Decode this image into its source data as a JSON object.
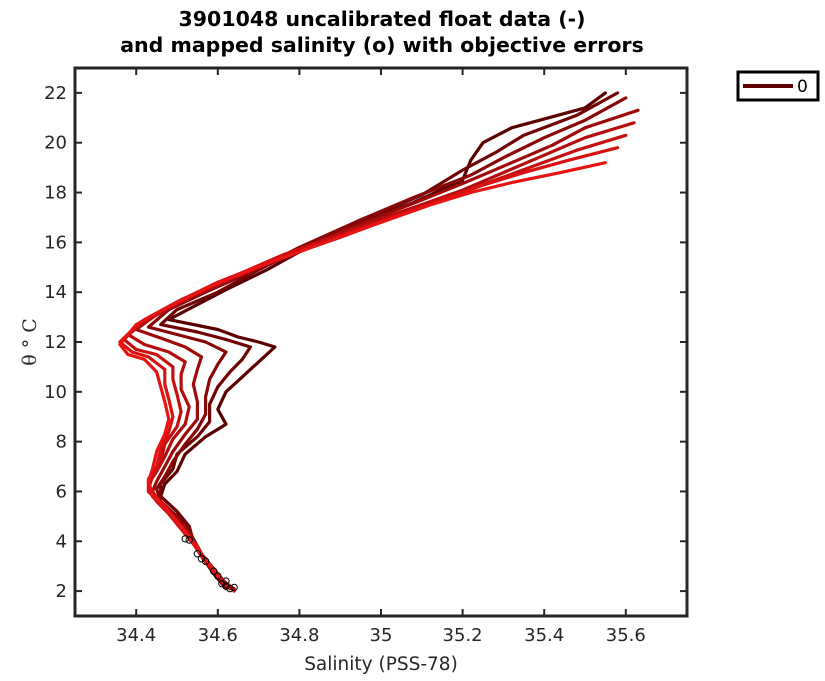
{
  "chart_data": {
    "type": "line",
    "title_lines": [
      "3901048 uncalibrated float data (-)",
      "and mapped salinity (o) with objective errors"
    ],
    "xlabel": "Salinity (PSS-78)",
    "ylabel": "θ ° C",
    "xlim": [
      34.25,
      35.75
    ],
    "ylim": [
      1,
      23
    ],
    "xticks": [
      34.4,
      34.6,
      34.8,
      35,
      35.2,
      35.4,
      35.6
    ],
    "xtick_labels": [
      "34.4",
      "34.6",
      "34.8",
      "35",
      "35.2",
      "35.4",
      "35.6"
    ],
    "yticks": [
      2,
      4,
      6,
      8,
      10,
      12,
      14,
      16,
      18,
      20,
      22
    ],
    "ytick_labels": [
      "2",
      "4",
      "6",
      "8",
      "10",
      "12",
      "14",
      "16",
      "18",
      "20",
      "22"
    ],
    "grid": false,
    "legend": {
      "position": "outside-top-right",
      "entries": [
        "0"
      ]
    },
    "colors": {
      "start": "#5a0000",
      "end": "#e81010",
      "markers": "#000000"
    },
    "series": [
      {
        "color": "#5a0000",
        "points": [
          [
            35.55,
            22.0
          ],
          [
            35.5,
            21.4
          ],
          [
            35.32,
            20.6
          ],
          [
            35.25,
            20.0
          ],
          [
            35.22,
            19.3
          ],
          [
            35.2,
            18.5
          ],
          [
            35.08,
            17.6
          ],
          [
            34.95,
            16.8
          ],
          [
            34.82,
            15.8
          ],
          [
            34.72,
            14.9
          ],
          [
            34.62,
            14.1
          ],
          [
            34.55,
            13.5
          ],
          [
            34.48,
            12.9
          ],
          [
            34.6,
            12.5
          ],
          [
            34.65,
            12.2
          ],
          [
            34.7,
            12.0
          ],
          [
            34.74,
            11.8
          ],
          [
            34.7,
            11.2
          ],
          [
            34.66,
            10.6
          ],
          [
            34.62,
            10.0
          ],
          [
            34.6,
            9.3
          ],
          [
            34.62,
            8.7
          ],
          [
            34.57,
            8.2
          ],
          [
            34.52,
            7.5
          ],
          [
            34.5,
            6.8
          ],
          [
            34.47,
            6.3
          ],
          [
            34.46,
            5.8
          ],
          [
            34.5,
            5.2
          ],
          [
            34.52,
            4.6
          ],
          [
            34.54,
            4.0
          ],
          [
            34.56,
            3.4
          ],
          [
            34.59,
            2.8
          ],
          [
            34.62,
            2.2
          ]
        ]
      },
      {
        "color": "#700404",
        "points": [
          [
            35.58,
            22.0
          ],
          [
            35.48,
            21.1
          ],
          [
            35.35,
            20.3
          ],
          [
            35.28,
            19.6
          ],
          [
            35.2,
            18.9
          ],
          [
            35.1,
            17.9
          ],
          [
            34.97,
            17.0
          ],
          [
            34.82,
            15.9
          ],
          [
            34.7,
            14.9
          ],
          [
            34.6,
            14.0
          ],
          [
            34.5,
            13.3
          ],
          [
            34.46,
            12.7
          ],
          [
            34.55,
            12.4
          ],
          [
            34.62,
            12.1
          ],
          [
            34.68,
            11.8
          ],
          [
            34.66,
            11.3
          ],
          [
            34.63,
            10.8
          ],
          [
            34.6,
            10.2
          ],
          [
            34.58,
            9.5
          ],
          [
            34.58,
            8.8
          ],
          [
            34.55,
            8.2
          ],
          [
            34.5,
            7.5
          ],
          [
            34.49,
            6.9
          ],
          [
            34.46,
            6.3
          ],
          [
            34.46,
            5.8
          ],
          [
            34.5,
            5.2
          ],
          [
            34.53,
            4.6
          ],
          [
            34.54,
            4.0
          ],
          [
            34.56,
            3.4
          ],
          [
            34.59,
            2.7
          ],
          [
            34.62,
            2.1
          ]
        ]
      },
      {
        "color": "#880707",
        "points": [
          [
            35.6,
            21.8
          ],
          [
            35.5,
            20.9
          ],
          [
            35.4,
            20.2
          ],
          [
            35.3,
            19.4
          ],
          [
            35.22,
            18.7
          ],
          [
            35.08,
            17.8
          ],
          [
            34.95,
            16.9
          ],
          [
            34.8,
            15.8
          ],
          [
            34.68,
            14.8
          ],
          [
            34.57,
            14.0
          ],
          [
            34.48,
            13.3
          ],
          [
            34.43,
            12.6
          ],
          [
            34.5,
            12.3
          ],
          [
            34.57,
            12.0
          ],
          [
            34.62,
            11.6
          ],
          [
            34.6,
            11.1
          ],
          [
            34.58,
            10.5
          ],
          [
            34.57,
            9.8
          ],
          [
            34.57,
            9.1
          ],
          [
            34.55,
            8.5
          ],
          [
            34.52,
            7.9
          ],
          [
            34.49,
            7.2
          ],
          [
            34.47,
            6.6
          ],
          [
            34.45,
            6.1
          ],
          [
            34.46,
            5.6
          ],
          [
            34.5,
            5.0
          ],
          [
            34.53,
            4.4
          ],
          [
            34.55,
            3.8
          ],
          [
            34.57,
            3.2
          ],
          [
            34.6,
            2.6
          ],
          [
            34.63,
            2.1
          ]
        ]
      },
      {
        "color": "#9e0a0a",
        "points": [
          [
            35.63,
            21.3
          ],
          [
            35.5,
            20.6
          ],
          [
            35.42,
            19.9
          ],
          [
            35.32,
            19.2
          ],
          [
            35.22,
            18.5
          ],
          [
            35.1,
            17.7
          ],
          [
            34.96,
            16.8
          ],
          [
            34.8,
            15.7
          ],
          [
            34.66,
            14.7
          ],
          [
            34.55,
            13.9
          ],
          [
            34.45,
            13.1
          ],
          [
            34.4,
            12.5
          ],
          [
            34.47,
            12.1
          ],
          [
            34.52,
            11.8
          ],
          [
            34.56,
            11.4
          ],
          [
            34.55,
            10.9
          ],
          [
            34.54,
            10.3
          ],
          [
            34.55,
            9.6
          ],
          [
            34.55,
            8.9
          ],
          [
            34.52,
            8.3
          ],
          [
            34.49,
            7.6
          ],
          [
            34.47,
            7.0
          ],
          [
            34.45,
            6.4
          ],
          [
            34.44,
            6.0
          ],
          [
            34.46,
            5.5
          ],
          [
            34.5,
            4.9
          ],
          [
            34.53,
            4.3
          ],
          [
            34.55,
            3.7
          ],
          [
            34.58,
            3.1
          ],
          [
            34.61,
            2.5
          ],
          [
            34.63,
            2.1
          ]
        ]
      },
      {
        "color": "#b40d0d",
        "points": [
          [
            35.62,
            20.8
          ],
          [
            35.5,
            20.2
          ],
          [
            35.4,
            19.5
          ],
          [
            35.3,
            18.8
          ],
          [
            35.2,
            18.1
          ],
          [
            35.08,
            17.4
          ],
          [
            34.94,
            16.6
          ],
          [
            34.78,
            15.6
          ],
          [
            34.64,
            14.6
          ],
          [
            34.53,
            13.8
          ],
          [
            34.44,
            13.0
          ],
          [
            34.38,
            12.3
          ],
          [
            34.42,
            11.9
          ],
          [
            34.48,
            11.6
          ],
          [
            34.52,
            11.2
          ],
          [
            34.51,
            10.7
          ],
          [
            34.51,
            10.1
          ],
          [
            34.53,
            9.4
          ],
          [
            34.52,
            8.7
          ],
          [
            34.49,
            8.1
          ],
          [
            34.47,
            7.4
          ],
          [
            34.45,
            6.8
          ],
          [
            34.43,
            6.3
          ],
          [
            34.44,
            5.8
          ],
          [
            34.47,
            5.3
          ],
          [
            34.5,
            4.7
          ],
          [
            34.53,
            4.1
          ],
          [
            34.56,
            3.5
          ],
          [
            34.58,
            3.0
          ],
          [
            34.61,
            2.4
          ],
          [
            34.63,
            2.1
          ]
        ]
      },
      {
        "color": "#c60f0f",
        "points": [
          [
            35.6,
            20.3
          ],
          [
            35.48,
            19.7
          ],
          [
            35.38,
            19.1
          ],
          [
            35.28,
            18.5
          ],
          [
            35.18,
            17.9
          ],
          [
            35.06,
            17.2
          ],
          [
            34.92,
            16.4
          ],
          [
            34.76,
            15.5
          ],
          [
            34.62,
            14.5
          ],
          [
            34.51,
            13.7
          ],
          [
            34.42,
            12.9
          ],
          [
            34.37,
            12.1
          ],
          [
            34.4,
            11.7
          ],
          [
            34.45,
            11.5
          ],
          [
            34.49,
            11.0
          ],
          [
            34.49,
            10.5
          ],
          [
            34.5,
            9.9
          ],
          [
            34.51,
            9.2
          ],
          [
            34.5,
            8.6
          ],
          [
            34.47,
            7.9
          ],
          [
            34.46,
            7.2
          ],
          [
            34.44,
            6.6
          ],
          [
            34.43,
            6.1
          ],
          [
            34.45,
            5.6
          ],
          [
            34.48,
            5.1
          ],
          [
            34.51,
            4.5
          ],
          [
            34.54,
            3.9
          ],
          [
            34.56,
            3.4
          ],
          [
            34.59,
            2.8
          ],
          [
            34.62,
            2.3
          ],
          [
            34.64,
            2.1
          ]
        ]
      },
      {
        "color": "#d81111",
        "points": [
          [
            35.58,
            19.8
          ],
          [
            35.46,
            19.3
          ],
          [
            35.35,
            18.8
          ],
          [
            35.25,
            18.3
          ],
          [
            35.15,
            17.7
          ],
          [
            35.03,
            17.0
          ],
          [
            34.9,
            16.2
          ],
          [
            34.74,
            15.3
          ],
          [
            34.6,
            14.4
          ],
          [
            34.5,
            13.6
          ],
          [
            34.41,
            12.8
          ],
          [
            34.36,
            12.0
          ],
          [
            34.39,
            11.6
          ],
          [
            34.43,
            11.4
          ],
          [
            34.47,
            10.9
          ],
          [
            34.47,
            10.3
          ],
          [
            34.48,
            9.7
          ],
          [
            34.49,
            9.0
          ],
          [
            34.48,
            8.4
          ],
          [
            34.46,
            7.7
          ],
          [
            34.45,
            7.0
          ],
          [
            34.43,
            6.5
          ],
          [
            34.43,
            6.0
          ],
          [
            34.46,
            5.5
          ],
          [
            34.49,
            4.9
          ],
          [
            34.52,
            4.3
          ],
          [
            34.55,
            3.8
          ],
          [
            34.57,
            3.2
          ],
          [
            34.6,
            2.7
          ],
          [
            34.62,
            2.2
          ],
          [
            34.64,
            2.1
          ]
        ]
      },
      {
        "color": "#e81313",
        "points": [
          [
            35.55,
            19.2
          ],
          [
            35.44,
            18.8
          ],
          [
            35.32,
            18.4
          ],
          [
            35.22,
            18.0
          ],
          [
            35.12,
            17.5
          ],
          [
            35.0,
            16.8
          ],
          [
            34.88,
            16.1
          ],
          [
            34.73,
            15.2
          ],
          [
            34.59,
            14.3
          ],
          [
            34.49,
            13.5
          ],
          [
            34.4,
            12.7
          ],
          [
            34.36,
            11.9
          ],
          [
            34.38,
            11.5
          ],
          [
            34.42,
            11.3
          ],
          [
            34.45,
            10.8
          ],
          [
            34.46,
            10.2
          ],
          [
            34.47,
            9.6
          ],
          [
            34.48,
            8.9
          ],
          [
            34.47,
            8.3
          ],
          [
            34.45,
            7.6
          ],
          [
            34.44,
            6.9
          ],
          [
            34.43,
            6.4
          ],
          [
            34.44,
            5.9
          ],
          [
            34.47,
            5.4
          ],
          [
            34.5,
            4.8
          ],
          [
            34.53,
            4.2
          ],
          [
            34.55,
            3.7
          ],
          [
            34.58,
            3.1
          ],
          [
            34.6,
            2.6
          ],
          [
            34.63,
            2.2
          ],
          [
            34.64,
            2.0
          ]
        ]
      }
    ],
    "mapped_points": [
      [
        34.52,
        4.1
      ],
      [
        34.53,
        4.05
      ],
      [
        34.55,
        3.5
      ],
      [
        34.56,
        3.3
      ],
      [
        34.57,
        3.2
      ],
      [
        34.59,
        2.8
      ],
      [
        34.6,
        2.6
      ],
      [
        34.62,
        2.4
      ],
      [
        34.62,
        2.2
      ],
      [
        34.63,
        2.1
      ],
      [
        34.61,
        2.3
      ],
      [
        34.64,
        2.15
      ]
    ]
  }
}
